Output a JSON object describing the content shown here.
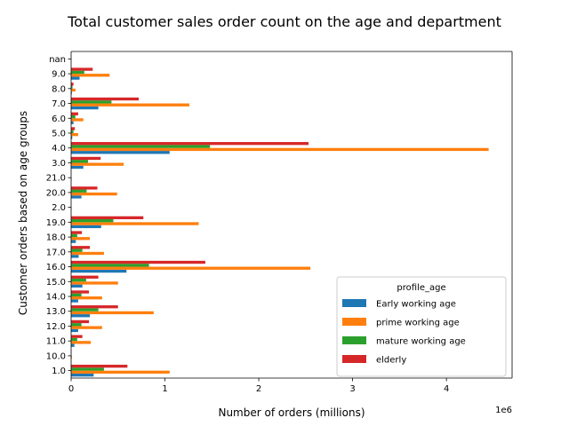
{
  "chart_data": {
    "type": "bar",
    "orientation": "horizontal",
    "title": "Total customer sales order count on the age and department",
    "xlabel": "Number of orders (millions)",
    "ylabel": "Customer orders based on age groups",
    "x_offset_label": "1e6",
    "xlim": [
      0,
      4700000
    ],
    "x_ticks": [
      0,
      1000000,
      2000000,
      3000000,
      4000000
    ],
    "x_tick_labels": [
      "0",
      "1",
      "2",
      "3",
      "4"
    ],
    "grid": false,
    "legend": {
      "title": "profile_age",
      "placement": "lower right"
    },
    "categories": [
      "1.0",
      "10.0",
      "11.0",
      "12.0",
      "13.0",
      "14.0",
      "15.0",
      "16.0",
      "17.0",
      "18.0",
      "19.0",
      "2.0",
      "20.0",
      "21.0",
      "3.0",
      "4.0",
      "5.0",
      "6.0",
      "7.0",
      "8.0",
      "9.0",
      "nan"
    ],
    "series": [
      {
        "name": "Early working age",
        "color": "#1f77b4",
        "values": [
          240000,
          0,
          35000,
          75000,
          200000,
          75000,
          120000,
          590000,
          80000,
          50000,
          320000,
          0,
          110000,
          0,
          130000,
          1050000,
          12000,
          25000,
          290000,
          8000,
          90000,
          0
        ]
      },
      {
        "name": "prime working age",
        "color": "#ff7f0e",
        "values": [
          1050000,
          8000,
          210000,
          330000,
          880000,
          330000,
          500000,
          2550000,
          350000,
          200000,
          1360000,
          5000,
          490000,
          5000,
          560000,
          4450000,
          75000,
          130000,
          1260000,
          45000,
          410000,
          0
        ]
      },
      {
        "name": "mature working age",
        "color": "#2ca02c",
        "values": [
          350000,
          2000,
          65000,
          110000,
          290000,
          110000,
          160000,
          830000,
          120000,
          65000,
          450000,
          0,
          165000,
          0,
          180000,
          1480000,
          25000,
          45000,
          430000,
          15000,
          140000,
          0
        ]
      },
      {
        "name": "elderly",
        "color": "#d62728",
        "values": [
          600000,
          3000,
          120000,
          190000,
          500000,
          190000,
          290000,
          1430000,
          200000,
          115000,
          770000,
          0,
          280000,
          0,
          315000,
          2530000,
          40000,
          75000,
          720000,
          25000,
          230000,
          0
        ]
      }
    ]
  }
}
